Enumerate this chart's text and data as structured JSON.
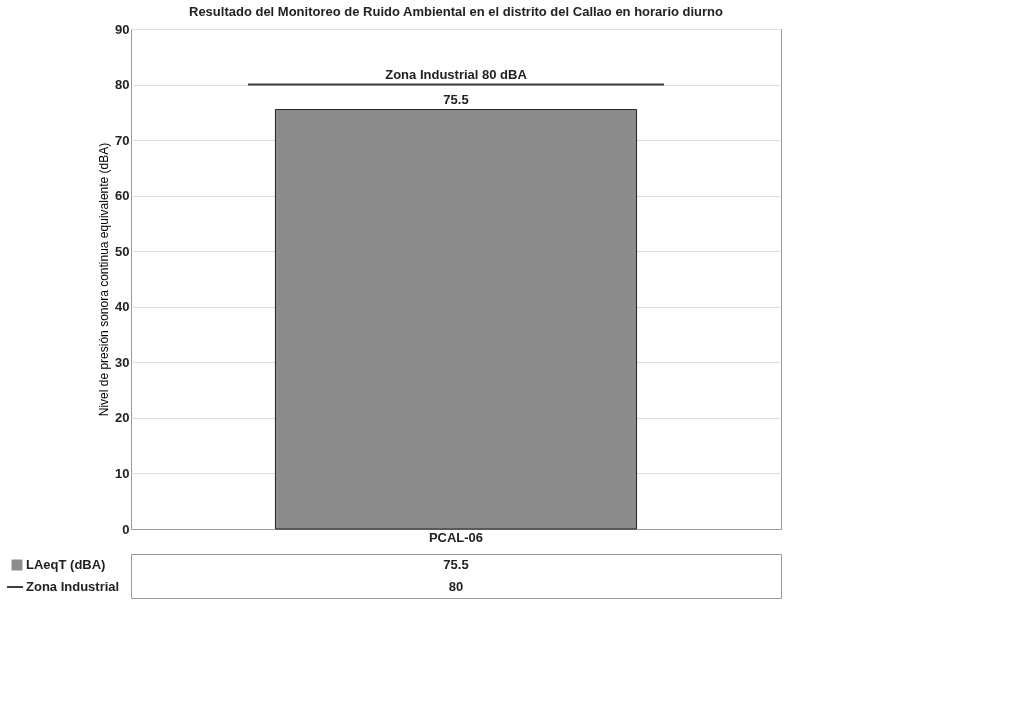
{
  "chart_data": {
    "type": "bar",
    "title": "Resultado del Monitoreo de Ruido Ambiental en el distrito del Callao en horario diurno",
    "ylabel": "Nivel de presión sonora continua equivalente (dBA)",
    "categories": [
      "PCAL-06"
    ],
    "series": [
      {
        "name": "LAeqT (dBA)",
        "color": "#8c8c8c",
        "values": [
          75.5
        ]
      }
    ],
    "ref_lines": [
      {
        "axis": "y",
        "value": 80,
        "label": "Zona Industrial 80 dBA",
        "color": "#404040"
      }
    ],
    "annotations": [
      "Zona Industrial",
      "75.5",
      "80"
    ],
    "ylim": [
      0,
      90
    ],
    "yticks": [
      0,
      10,
      20,
      30,
      40,
      50,
      60,
      70,
      80,
      90
    ],
    "grid": "y",
    "data_labels": true,
    "legend": "bottom"
  }
}
